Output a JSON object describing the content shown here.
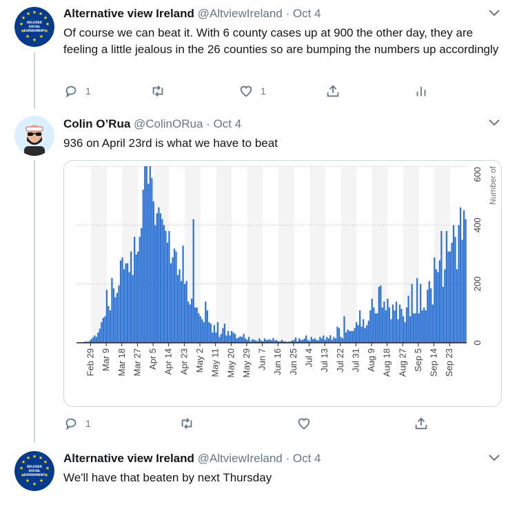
{
  "tweets": [
    {
      "name": "Alternative view Ireland",
      "handle": "@AltviewIreland",
      "date": "Oct 4",
      "avatar_text": "DELUDED SOCIAL EXPERIMENT",
      "text": "Of course we can beat it. With 6 county cases up at 900 the other day, they are feeling a little jealous in the 26 counties so are bumping the numbers up accordingly",
      "replies": "1",
      "retweets": "",
      "likes": "1"
    },
    {
      "name": "Colin O’Rua",
      "handle": "@ColinORua",
      "date": "Oct 4",
      "text": "936 on April 23rd is what we have to beat",
      "replies": "1",
      "retweets": "",
      "likes": ""
    },
    {
      "name": "Alternative view Ireland",
      "handle": "@AltviewIreland",
      "date": "Oct 4",
      "avatar_text": "DELUDED SOCIAL EXPERIMENT",
      "text": "We'll have that beaten by next Thursday"
    }
  ],
  "separator": "·",
  "colors": {
    "accent": "#1da1f2",
    "bar": "#2f74d4",
    "muted": "#657786",
    "thread": "#ccd6dd",
    "eu_blue": "#063a8c",
    "eu_star": "#ffdd00"
  },
  "chart_data": {
    "type": "bar",
    "ylim": [
      0,
      600
    ],
    "yticks": [
      "0",
      "200",
      "400",
      "600"
    ],
    "ylabel": "Number of",
    "xticks": [
      "Feb 29",
      "Mar 9",
      "Mar 18",
      "Mar 27",
      "Apr 5",
      "Apr 14",
      "Apr 23",
      "May 2",
      "May 11",
      "May 20",
      "May 29",
      "Jun 7",
      "Jun 16",
      "Jun 25",
      "Jul 4",
      "Jul 13",
      "Jul 22",
      "Jul 31",
      "Aug 9",
      "Aug 18",
      "Aug 27",
      "Sep 5",
      "Sep 14",
      "Sep 23"
    ],
    "start_date": "2020-02-29",
    "values": [
      1,
      0,
      0,
      2,
      3,
      5,
      3,
      6,
      12,
      18,
      25,
      20,
      35,
      48,
      70,
      85,
      90,
      180,
      125,
      110,
      220,
      185,
      155,
      170,
      195,
      280,
      290,
      250,
      270,
      270,
      240,
      310,
      230,
      360,
      300,
      310,
      360,
      390,
      520,
      640,
      640,
      540,
      620,
      560,
      480,
      400,
      440,
      460,
      440,
      420,
      400,
      380,
      340,
      380,
      270,
      290,
      320,
      310,
      230,
      250,
      210,
      330,
      200,
      210,
      140,
      130,
      150,
      420,
      120,
      120,
      100,
      90,
      80,
      70,
      140,
      110,
      70,
      65,
      35,
      60,
      35,
      70,
      20,
      30,
      50,
      65,
      25,
      40,
      25,
      40,
      35,
      30,
      15,
      18,
      22,
      20,
      30,
      15,
      10,
      20,
      5,
      12,
      10,
      8,
      5,
      15,
      8,
      5,
      15,
      10,
      10,
      12,
      8,
      16,
      8,
      10,
      5,
      5,
      10,
      5,
      5,
      3,
      4,
      5,
      8,
      10,
      18,
      5,
      15,
      10,
      10,
      15,
      25,
      10,
      6,
      20,
      12,
      15,
      10,
      8,
      20,
      15,
      25,
      10,
      20,
      15,
      26,
      10,
      20,
      15,
      55,
      50,
      20,
      15,
      90,
      35,
      45,
      40,
      40,
      40,
      50,
      70,
      60,
      110,
      55,
      80,
      50,
      60,
      75,
      110,
      150,
      120,
      100,
      100,
      190,
      195,
      120,
      140,
      110,
      150,
      120,
      80,
      130,
      110,
      140,
      80,
      130,
      115,
      90,
      70,
      120,
      160,
      90,
      200,
      100,
      100,
      220,
      100,
      200,
      110,
      120,
      110,
      180,
      210,
      185,
      130,
      290,
      250,
      240,
      280,
      380,
      190,
      250,
      380,
      310,
      310,
      340,
      400,
      360,
      250,
      400,
      460,
      350,
      450,
      420
    ]
  }
}
